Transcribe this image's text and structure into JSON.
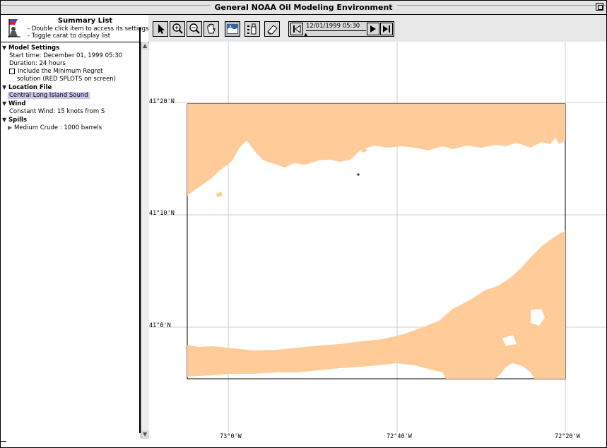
{
  "window": {
    "title": "General NOAA Oil Modeling Environment"
  },
  "summary": {
    "title": "Summary List",
    "hint1": "- Double click item to access its settings",
    "hint2": "- Toggle carat to display list"
  },
  "tree": {
    "model_settings": {
      "label": "Model Settings",
      "start_time": "Start time: December 01, 1999 05:30",
      "duration": "Duration: 24 hours",
      "min_regret_line1": "Include the Minimum Regret",
      "min_regret_line2": "solution (RED SPLOTS on screen)"
    },
    "location_file": {
      "label": "Location File",
      "value": "Central Long Island Sound"
    },
    "wind": {
      "label": "Wind",
      "value": "Constant Wind: 15 knots from S"
    },
    "spills": {
      "label": "Spills",
      "item": "Medium Crude : 1000 barrels"
    }
  },
  "toolbar": {
    "tools": [
      "arrow-tool",
      "zoom-in-tool",
      "zoom-out-tool",
      "hand-tool",
      "map-tool",
      "list-tool",
      "eraser-tool"
    ],
    "time_display": "12/01/1999 05:30",
    "buttons": [
      "rewind-button",
      "step-forward-button",
      "run-button"
    ]
  },
  "map": {
    "lat_labels": [
      "41°20'N",
      "41°10'N",
      "41°0'N"
    ],
    "lon_labels": [
      "73°0'W",
      "72°40'W",
      "72°20'W"
    ],
    "land_color": "#ffcc99"
  }
}
